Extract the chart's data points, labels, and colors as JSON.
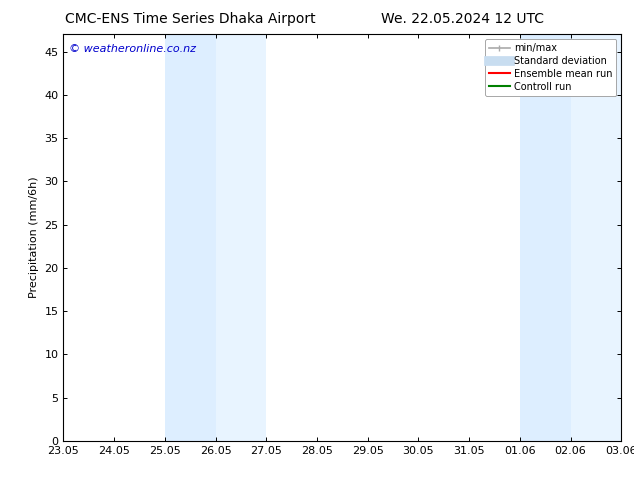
{
  "title_left": "CMC-ENS Time Series Dhaka Airport",
  "title_right": "We. 22.05.2024 12 UTC",
  "ylabel": "Precipitation (mm/6h)",
  "watermark": "© weatheronline.co.nz",
  "background_color": "#ffffff",
  "plot_bg_color": "#ffffff",
  "x_tick_labels": [
    "23.05",
    "24.05",
    "25.05",
    "26.05",
    "27.05",
    "28.05",
    "29.05",
    "30.05",
    "31.05",
    "01.06",
    "02.06",
    "03.06"
  ],
  "ylim": [
    0,
    47
  ],
  "yticks": [
    0,
    5,
    10,
    15,
    20,
    25,
    30,
    35,
    40,
    45
  ],
  "shaded_regions": [
    {
      "xmin": 2.0,
      "xmax": 3.0,
      "color": "#ddeeff",
      "alpha": 1.0
    },
    {
      "xmin": 3.0,
      "xmax": 4.0,
      "color": "#e8f4ff",
      "alpha": 1.0
    },
    {
      "xmin": 9.0,
      "xmax": 10.0,
      "color": "#ddeeff",
      "alpha": 1.0
    },
    {
      "xmin": 10.0,
      "xmax": 11.0,
      "color": "#e8f4ff",
      "alpha": 1.0
    }
  ],
  "legend_minmax_color": "#aaaaaa",
  "legend_std_color": "#c8ddf0",
  "legend_ens_color": "#ff0000",
  "legend_ctrl_color": "#008000",
  "title_fontsize": 10,
  "axis_fontsize": 8,
  "watermark_color": "#0000cc",
  "watermark_fontsize": 8,
  "tick_label_color": "#000000",
  "spine_color": "#000000",
  "n_xticks": 12
}
